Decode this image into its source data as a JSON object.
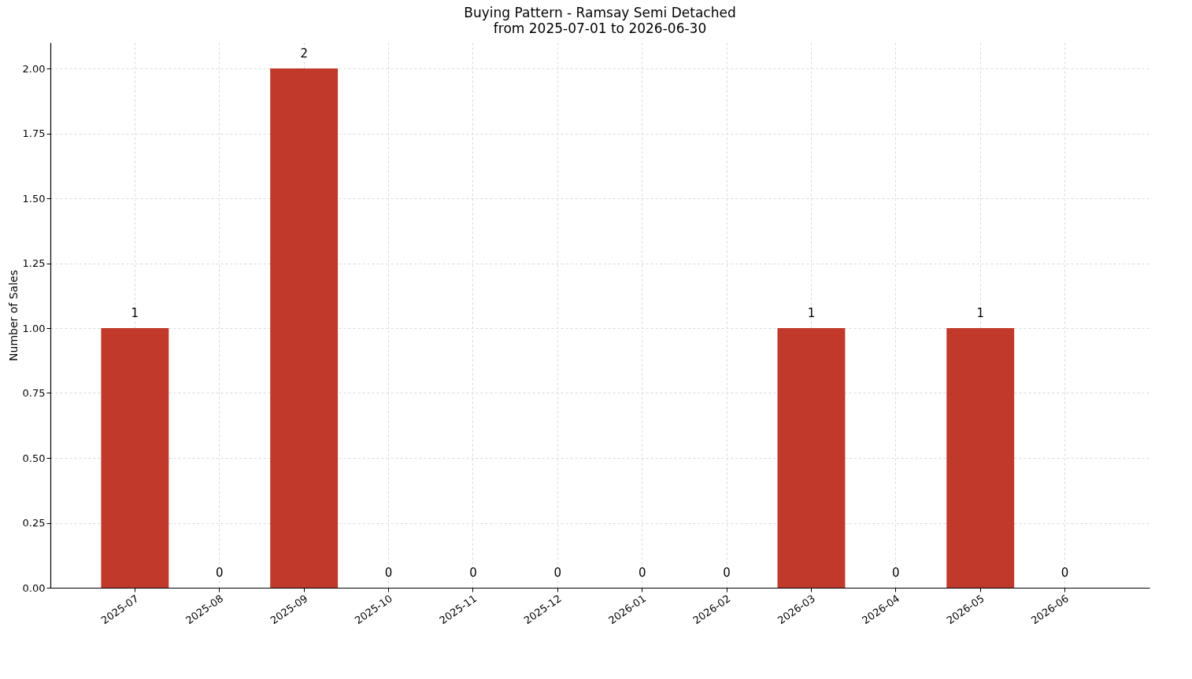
{
  "chart_data": {
    "type": "bar",
    "title": "Buying Pattern - Ramsay Semi Detached",
    "subtitle": "from 2025-07-01 to 2026-06-30",
    "ylabel": "Number of Sales",
    "categories": [
      "2025-07",
      "2025-08",
      "2025-09",
      "2025-10",
      "2025-11",
      "2025-12",
      "2026-01",
      "2026-02",
      "2026-03",
      "2026-04",
      "2026-05",
      "2026-06"
    ],
    "values": [
      1,
      0,
      2,
      0,
      0,
      0,
      0,
      0,
      1,
      0,
      1,
      0
    ],
    "color": "#c0392b",
    "ylim": [
      0,
      2.1
    ],
    "yticks": [
      {
        "value": 0,
        "label": "0.00"
      },
      {
        "value": 0.25,
        "label": "0.25"
      },
      {
        "value": 0.5,
        "label": "0.50"
      },
      {
        "value": 0.75,
        "label": "0.75"
      },
      {
        "value": 1,
        "label": "1.00"
      },
      {
        "value": 1.25,
        "label": "1.25"
      },
      {
        "value": 1.5,
        "label": "1.50"
      },
      {
        "value": 1.75,
        "label": "1.75"
      },
      {
        "value": 2,
        "label": "2.00"
      }
    ],
    "grid": true,
    "data_labels": true
  }
}
